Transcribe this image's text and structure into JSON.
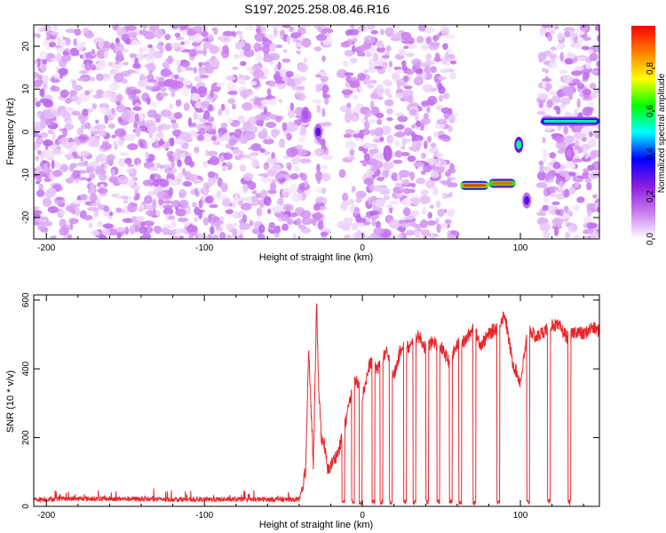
{
  "title": "S197.2025.258.08.46.R16",
  "chart_data": [
    {
      "type": "heatmap",
      "xlabel": "Height of straight line (km)",
      "ylabel": "Frequency (Hz)",
      "xlim": [
        -208,
        150
      ],
      "ylim": [
        -25,
        25
      ],
      "xticks": [
        -200,
        -100,
        0,
        100
      ],
      "xtick_labels": [
        "-200",
        "-100",
        "0",
        "100"
      ],
      "yticks": [
        -20,
        -10,
        0,
        10,
        20
      ],
      "ytick_labels": [
        "-20",
        "-10",
        "0",
        "10",
        "20"
      ],
      "grid": false,
      "colorbar": {
        "label": "Normalized spectral amplitude",
        "range": [
          0,
          1
        ],
        "ticks": [
          0.0,
          0.2,
          0.4,
          0.6,
          0.8
        ],
        "tick_labels": [
          "0.0",
          "0.2",
          "0.4",
          "0.6",
          "0.8"
        ],
        "colormap": [
          "#ffffff",
          "#c97cf0",
          "#8a1be0",
          "#0000ff",
          "#00ffff",
          "#00ff00",
          "#ffff00",
          "#ff8000",
          "#ff0000"
        ]
      },
      "noise_level": 0.22,
      "blank_ranges_km": [
        [
          -35,
          -29
        ],
        [
          -22,
          -13
        ],
        [
          18,
          20
        ],
        [
          58,
          113
        ]
      ],
      "features": [
        {
          "x_km": -36,
          "freq_hz": 4,
          "amplitude": 0.18
        },
        {
          "x_km": -28,
          "freq_hz": 0,
          "amplitude": 0.3
        },
        {
          "x_km": 16,
          "freq_hz": -5,
          "amplitude": 0.15
        },
        {
          "x_range_km": [
            62,
            80
          ],
          "freq_hz": -12.5,
          "amplitude": 0.95
        },
        {
          "x_range_km": [
            80,
            97
          ],
          "freq_hz": -12,
          "amplitude": 0.9
        },
        {
          "x_km": 99,
          "freq_hz": -3,
          "amplitude": 0.55
        },
        {
          "x_km": 104,
          "freq_hz": -16,
          "amplitude": 0.3
        },
        {
          "x_range_km": [
            113,
            150
          ],
          "freq_hz": 2.5,
          "amplitude": 0.55
        },
        {
          "x_km": 131,
          "freq_hz": -5,
          "amplitude": 0.12
        }
      ]
    },
    {
      "type": "line",
      "xlabel": "Height of straight line (km)",
      "ylabel": "SNR (10 * v/v)",
      "xlim": [
        -208,
        150
      ],
      "ylim": [
        0,
        615
      ],
      "xticks": [
        -200,
        -100,
        0,
        100
      ],
      "xtick_labels": [
        "-200",
        "-100",
        "0",
        "100"
      ],
      "yticks": [
        0,
        200,
        400,
        600
      ],
      "ytick_labels": [
        "0",
        "200",
        "400",
        "600"
      ],
      "grid": false,
      "series": [
        {
          "color": "#e8262b",
          "x": [
            -208,
            -180,
            -150,
            -120,
            -100,
            -80,
            -60,
            -40,
            -36,
            -34,
            -31,
            -29,
            -28,
            -26,
            -24,
            -22,
            -20,
            -15,
            -10,
            -5,
            0,
            5,
            10,
            15,
            20,
            25,
            30,
            35,
            40,
            45,
            50,
            55,
            60,
            65,
            70,
            75,
            80,
            85,
            90,
            95,
            100,
            105,
            110,
            115,
            120,
            125,
            130,
            135,
            140,
            145,
            150
          ],
          "y": [
            20,
            22,
            22,
            20,
            20,
            20,
            20,
            20,
            100,
            450,
            120,
            600,
            380,
            200,
            180,
            100,
            120,
            160,
            260,
            380,
            320,
            420,
            400,
            450,
            380,
            470,
            460,
            500,
            460,
            480,
            460,
            420,
            470,
            480,
            520,
            470,
            500,
            520,
            560,
            420,
            360,
            520,
            490,
            510,
            530,
            520,
            490,
            510,
            500,
            520,
            510
          ]
        }
      ],
      "dropouts_km": [
        -12,
        -6,
        -1,
        7,
        12,
        18,
        27,
        33,
        41,
        48,
        56,
        62,
        71,
        86,
        105,
        118,
        131
      ]
    }
  ]
}
